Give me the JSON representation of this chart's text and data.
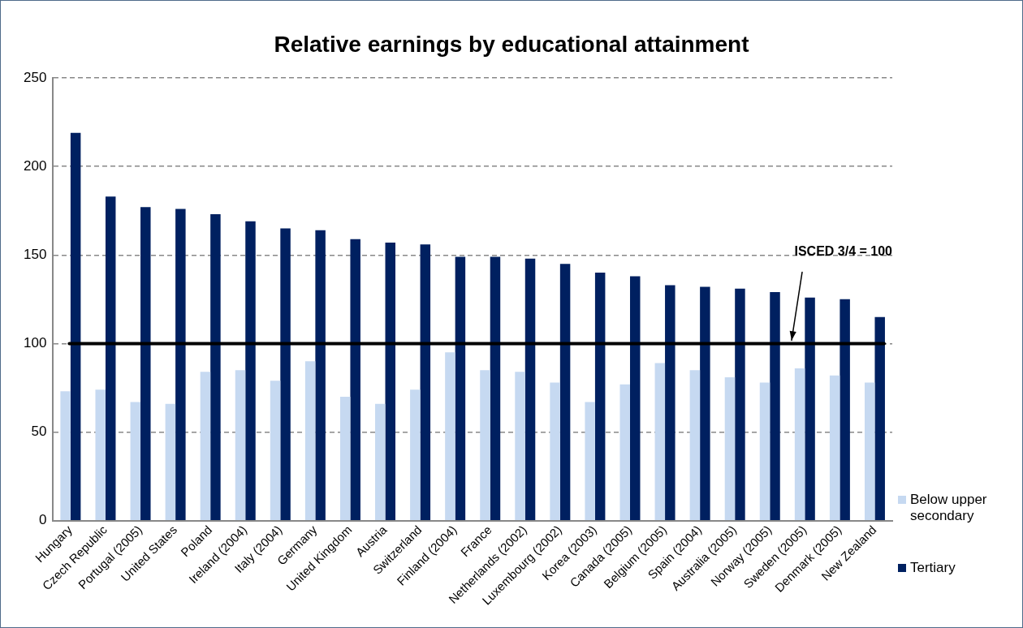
{
  "chart_data": {
    "type": "bar",
    "title": "Relative earnings by educational attainment",
    "categories": [
      "Hungary",
      "Czech Republic",
      "Portugal (2005)",
      "United States",
      "Poland",
      "Ireland (2004)",
      "Italy (2004)",
      "Germany",
      "United Kingdom",
      "Austria",
      "Switzerland",
      "Finland (2004)",
      "France",
      "Netherlands (2002)",
      "Luxembourg (2002)",
      "Korea (2003)",
      "Canada (2005)",
      "Belgium (2005)",
      "Spain (2004)",
      "Australia (2005)",
      "Norway (2005)",
      "Sweden (2005)",
      "Denmark (2005)",
      "New Zealand"
    ],
    "series": [
      {
        "name": "Below upper secondary",
        "color": "#c6d9f1",
        "values": [
          73,
          74,
          67,
          66,
          84,
          85,
          79,
          90,
          70,
          66,
          74,
          95,
          85,
          84,
          78,
          67,
          77,
          89,
          85,
          81,
          78,
          86,
          82,
          78
        ]
      },
      {
        "name": "Tertiary",
        "color": "#002060",
        "values": [
          219,
          183,
          177,
          176,
          173,
          169,
          165,
          164,
          159,
          157,
          156,
          149,
          149,
          148,
          145,
          140,
          138,
          133,
          132,
          131,
          129,
          126,
          125,
          115
        ]
      }
    ],
    "ylim": [
      0,
      250
    ],
    "yticks": [
      0,
      50,
      100,
      150,
      200,
      250
    ],
    "grid": "y",
    "legend": "right",
    "ref_lines": [
      {
        "axis": "y",
        "value": 100,
        "label": "ISCED 3/4 = 100",
        "color": "#000000"
      }
    ]
  }
}
